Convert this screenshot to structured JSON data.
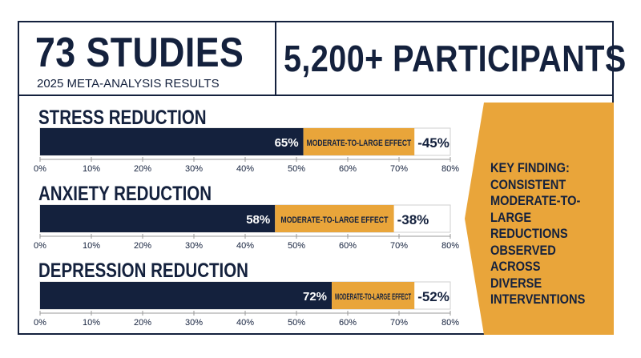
{
  "header": {
    "studies": "73 STUDIES",
    "subtitle": "2025 META-ANALYSIS RESULTS",
    "participants": "5,200+ PARTICIPANTS"
  },
  "key_finding": "KEY FINDING: CONSISTENT MODERATE-TO-LARGE REDUCTIONS OBSERVED ACROSS DIVERSE INTERVENTIONS",
  "colors": {
    "navy": "#14213d",
    "gold": "#e9a53a",
    "white": "#ffffff",
    "axis": "#cfcfcf"
  },
  "chart_data": [
    {
      "type": "bar",
      "title": "STRESS REDUCTION",
      "value": 65,
      "value_label": "65%",
      "effect_label": "MODERATE-TO-LARGE EFFECT",
      "effect_end": 73,
      "reduction_label": "-45%",
      "xlim": [
        0,
        80
      ],
      "ticks": [
        0,
        10,
        20,
        30,
        40,
        50,
        60,
        70,
        80
      ],
      "tick_labels": [
        "0%",
        "10%",
        "20%",
        "30%",
        "40%",
        "50%",
        "60%",
        "70%",
        "80%"
      ]
    },
    {
      "type": "bar",
      "title": "ANXIETY REDUCTION",
      "value": 58,
      "value_label": "58%",
      "effect_label": "MODERATE-TO-LARGE EFFECT",
      "effect_end": 69,
      "reduction_label": "-38%",
      "xlim": [
        0,
        80
      ],
      "ticks": [
        0,
        10,
        20,
        30,
        40,
        50,
        60,
        70,
        80
      ],
      "tick_labels": [
        "0%",
        "10%",
        "20%",
        "30%",
        "40%",
        "50%",
        "60%",
        "70%",
        "80%"
      ]
    },
    {
      "type": "bar",
      "title": "DEPRESSION REDUCTION",
      "value": 72,
      "value_label": "72%",
      "effect_label": "MODERATE-TO-LARGE EFFECT",
      "effect_end": 73,
      "reduction_label": "-52%",
      "xlim": [
        0,
        80
      ],
      "ticks": [
        0,
        10,
        20,
        30,
        40,
        50,
        60,
        70,
        80
      ],
      "tick_labels": [
        "0%",
        "10%",
        "20%",
        "30%",
        "40%",
        "50%",
        "60%",
        "70%",
        "80%"
      ]
    }
  ]
}
